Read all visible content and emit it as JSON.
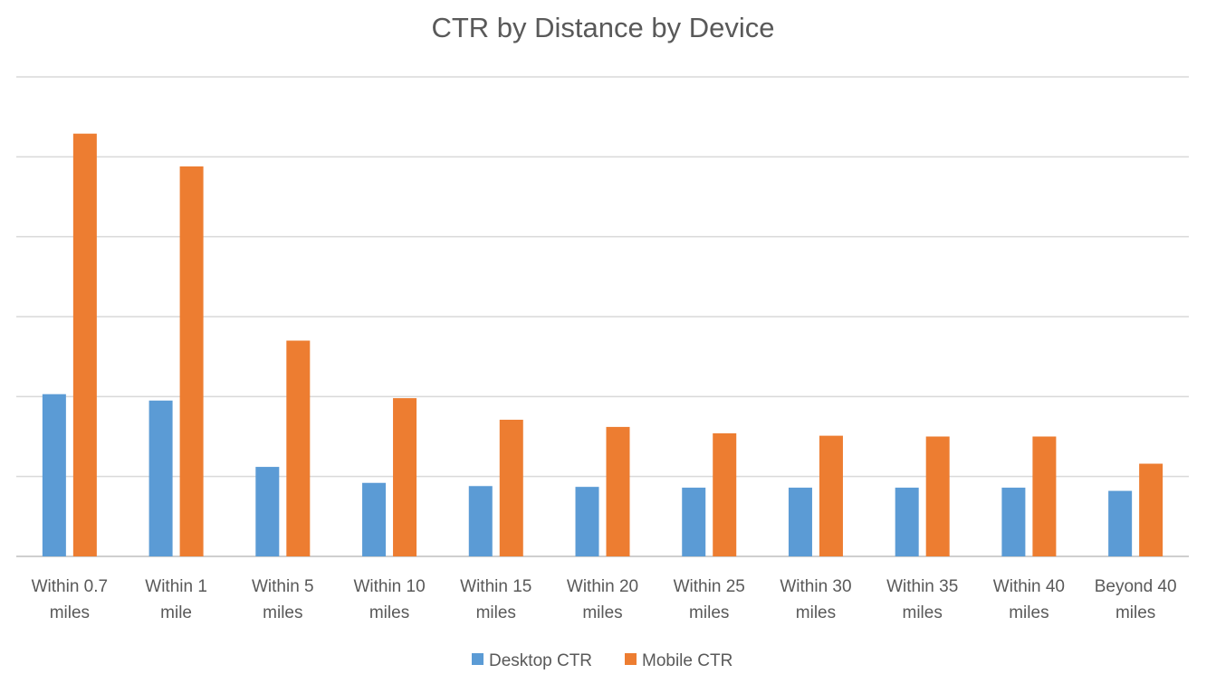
{
  "chart_data": {
    "type": "bar",
    "title": "CTR by Distance by Device",
    "xlabel": "",
    "ylabel": "",
    "ylim": [
      0,
      6
    ],
    "grid": true,
    "y_tick_labels_shown": false,
    "legend_position": "bottom",
    "categories": [
      [
        "Within 0.7",
        "miles"
      ],
      [
        "Within 1",
        "mile"
      ],
      [
        "Within 5",
        "miles"
      ],
      [
        "Within 10",
        "miles"
      ],
      [
        "Within 15",
        "miles"
      ],
      [
        "Within 20",
        "miles"
      ],
      [
        "Within 25",
        "miles"
      ],
      [
        "Within 30",
        "miles"
      ],
      [
        "Within 35",
        "miles"
      ],
      [
        "Within 40",
        "miles"
      ],
      [
        "Beyond 40",
        "miles"
      ]
    ],
    "series": [
      {
        "name": "Desktop CTR",
        "color": "#5B9BD5",
        "values": [
          2.03,
          1.95,
          1.12,
          0.92,
          0.88,
          0.87,
          0.86,
          0.86,
          0.86,
          0.86,
          0.82
        ]
      },
      {
        "name": "Mobile CTR",
        "color": "#ED7D31",
        "values": [
          5.29,
          4.88,
          2.7,
          1.98,
          1.71,
          1.62,
          1.54,
          1.51,
          1.5,
          1.5,
          1.16
        ]
      }
    ]
  }
}
